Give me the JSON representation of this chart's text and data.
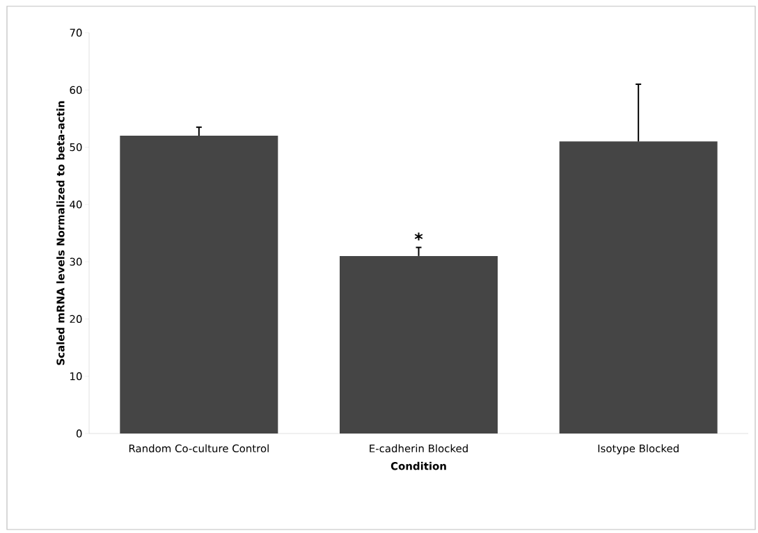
{
  "chart_data": {
    "type": "bar",
    "xlabel": "Condition",
    "ylabel": "Scaled mRNA levels Normalized to beta-actin",
    "categories": [
      "Random Co-culture Control",
      "E-cadherin Blocked",
      "Isotype Blocked"
    ],
    "values": [
      52,
      31,
      51
    ],
    "errors": [
      1.5,
      1.5,
      10
    ],
    "color": "#454545",
    "ylim": [
      0,
      70
    ],
    "yticks": [
      0,
      10,
      20,
      30,
      40,
      50,
      60,
      70
    ],
    "grid": false,
    "annotations": [
      "*"
    ]
  }
}
